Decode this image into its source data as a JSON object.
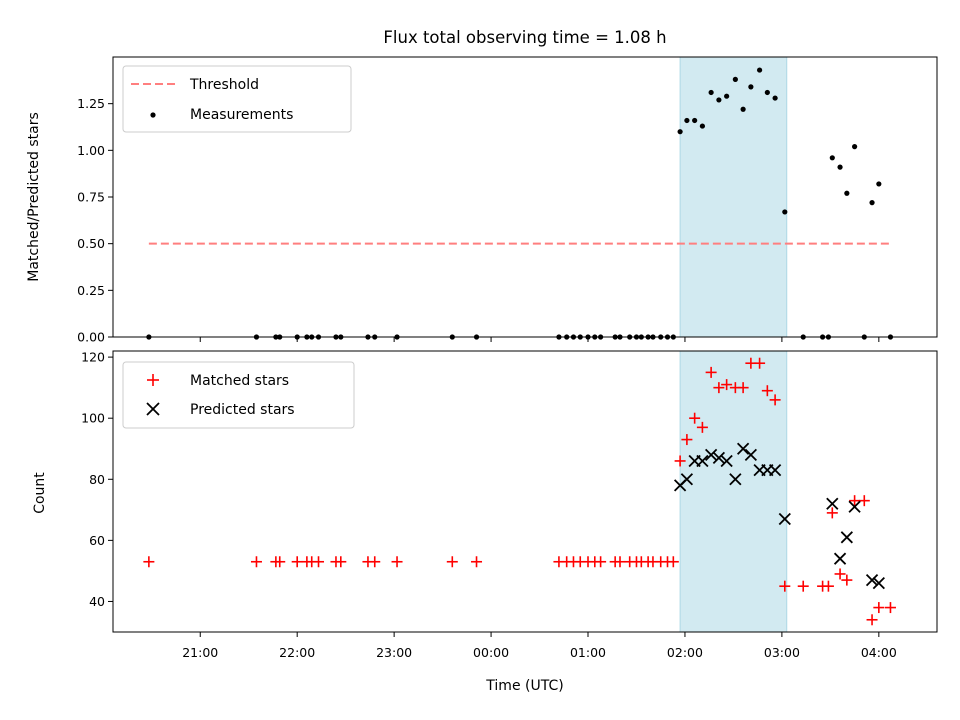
{
  "chart_data": [
    {
      "type": "scatter",
      "title": "Flux total observing time = 1.08 h",
      "xlabel": "",
      "ylabel": "Matched/Predicted stars",
      "xlim_hours": [
        20.1,
        28.6
      ],
      "ylim": [
        0,
        1.5
      ],
      "yticks": [
        "0.00",
        "0.25",
        "0.50",
        "0.75",
        "1.00",
        "1.25"
      ],
      "ytick_values": [
        0,
        0.25,
        0.5,
        0.75,
        1.0,
        1.25
      ],
      "legend_position": "upper-left",
      "shaded_span_hours": [
        25.95,
        27.05
      ],
      "shaded_color": "#add8e6",
      "threshold": {
        "name": "Threshold",
        "value": 0.5,
        "x_range_hours": [
          20.47,
          28.12
        ],
        "color": "#ff7f7f"
      },
      "series": [
        {
          "name": "Measurements",
          "marker": "dot",
          "color": "#000000",
          "x_hours": [
            20.47,
            21.58,
            21.78,
            21.82,
            22.0,
            22.1,
            22.15,
            22.22,
            22.4,
            22.45,
            22.73,
            22.8,
            23.03,
            23.6,
            23.85,
            24.7,
            24.78,
            24.85,
            24.92,
            25.0,
            25.07,
            25.13,
            25.28,
            25.33,
            25.43,
            25.5,
            25.55,
            25.62,
            25.67,
            25.75,
            25.82,
            25.88,
            25.95,
            26.02,
            26.1,
            26.18,
            26.27,
            26.35,
            26.43,
            26.52,
            26.6,
            26.68,
            26.77,
            26.85,
            26.93,
            27.03,
            27.22,
            27.42,
            27.48,
            27.52,
            27.6,
            27.67,
            27.75,
            27.85,
            27.93,
            28.0,
            28.12
          ],
          "y": [
            0,
            0,
            0,
            0,
            0,
            0,
            0,
            0,
            0,
            0,
            0,
            0,
            0,
            0,
            0,
            0,
            0,
            0,
            0,
            0,
            0,
            0,
            0,
            0,
            0,
            0,
            0,
            0,
            0,
            0,
            0,
            0,
            1.1,
            1.16,
            1.16,
            1.13,
            1.31,
            1.27,
            1.29,
            1.38,
            1.22,
            1.34,
            1.43,
            1.31,
            1.28,
            0.67,
            0,
            0,
            0,
            0.96,
            0.91,
            0.77,
            1.02,
            0,
            0.72,
            0.82,
            0
          ]
        }
      ]
    },
    {
      "type": "scatter",
      "title": "",
      "xlabel": "Time (UTC)",
      "ylabel": "Count",
      "xlim_hours": [
        20.1,
        28.6
      ],
      "ylim": [
        30,
        122
      ],
      "yticks": [
        "40",
        "60",
        "80",
        "100",
        "120"
      ],
      "ytick_values": [
        40,
        60,
        80,
        100,
        120
      ],
      "legend_position": "upper-left",
      "shaded_span_hours": [
        25.95,
        27.05
      ],
      "shaded_color": "#add8e6",
      "series": [
        {
          "name": "Matched stars",
          "marker": "plus",
          "color": "#ff0000",
          "x_hours": [
            20.47,
            21.58,
            21.78,
            21.82,
            22.0,
            22.1,
            22.15,
            22.22,
            22.4,
            22.45,
            22.73,
            22.8,
            23.03,
            23.6,
            23.85,
            24.7,
            24.78,
            24.85,
            24.92,
            25.0,
            25.07,
            25.13,
            25.28,
            25.33,
            25.43,
            25.5,
            25.55,
            25.62,
            25.67,
            25.75,
            25.82,
            25.88,
            25.95,
            26.02,
            26.1,
            26.18,
            26.27,
            26.35,
            26.43,
            26.52,
            26.6,
            26.68,
            26.77,
            26.85,
            26.93,
            27.03,
            27.22,
            27.42,
            27.48,
            27.52,
            27.6,
            27.67,
            27.75,
            27.85,
            27.93,
            28.0,
            28.12
          ],
          "y": [
            53,
            53,
            53,
            53,
            53,
            53,
            53,
            53,
            53,
            53,
            53,
            53,
            53,
            53,
            53,
            53,
            53,
            53,
            53,
            53,
            53,
            53,
            53,
            53,
            53,
            53,
            53,
            53,
            53,
            53,
            53,
            53,
            86,
            93,
            100,
            97,
            115,
            110,
            111,
            110,
            110,
            118,
            118,
            109,
            106,
            45,
            45,
            45,
            45,
            69,
            49,
            47,
            73,
            73,
            34,
            38,
            38
          ]
        },
        {
          "name": "Predicted stars",
          "marker": "x",
          "color": "#000000",
          "x_hours": [
            25.95,
            26.02,
            26.1,
            26.18,
            26.27,
            26.35,
            26.43,
            26.52,
            26.6,
            26.68,
            26.77,
            26.85,
            26.93,
            27.03,
            27.52,
            27.6,
            27.67,
            27.75,
            27.93,
            28.0
          ],
          "y": [
            78,
            80,
            86,
            86,
            88,
            87,
            86,
            80,
            90,
            88,
            83,
            83,
            83,
            67,
            72,
            54,
            61,
            71,
            47,
            46
          ]
        }
      ]
    }
  ],
  "x_axis": {
    "tick_hours": [
      21,
      22,
      23,
      24,
      25,
      26,
      27,
      28
    ],
    "tick_labels": [
      "21:00",
      "22:00",
      "23:00",
      "00:00",
      "01:00",
      "02:00",
      "03:00",
      "04:00"
    ]
  },
  "colors": {
    "threshold": "#ff7f7f",
    "matched": "#ff0000",
    "predicted": "#000000",
    "measurement": "#000000",
    "shade": "#add8e6"
  }
}
